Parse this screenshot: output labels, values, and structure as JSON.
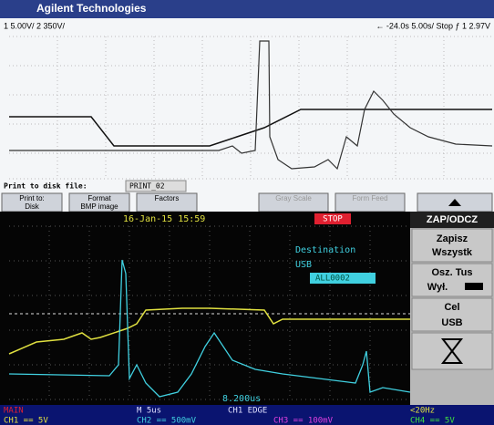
{
  "agilent": {
    "brand": "Agilent Technologies",
    "status_left": "1 5.00V/ 2 350V/",
    "status_right": "← -24.0s 5.00s/ Stop ƒ 1 2.97V",
    "print_label": "Print to disk file:",
    "print_file": "PRINT_02",
    "softkeys": [
      [
        "Print to:",
        "Disk"
      ],
      [
        "Format",
        "BMP image"
      ],
      [
        "Factors",
        ""
      ],
      [
        "Gray Scale",
        ""
      ],
      [
        "Form Feed",
        ""
      ]
    ]
  },
  "tektronix": {
    "datetime": "16-Jan-15 15:59",
    "state": "STOP",
    "destination_title": "Destination",
    "destination": "USB",
    "file": "ALL0002",
    "cursor": "8.200us",
    "menu": {
      "title": "ZAP/ODCZ",
      "save": [
        "Zapisz",
        "Wszystk"
      ],
      "ink": "Osz. Tus",
      "ink_state": "Wył.",
      "target": "Cel",
      "target_value": "USB"
    },
    "footer": {
      "mode": "MAIN",
      "timebase": "M 5us",
      "trigger": "CH1 EDGE",
      "freq": "<20Hz",
      "channels": [
        "CH1 == 5V",
        "CH2 == 500mV",
        "CH3 == 100mV",
        "CH4 == 5V"
      ]
    }
  }
}
